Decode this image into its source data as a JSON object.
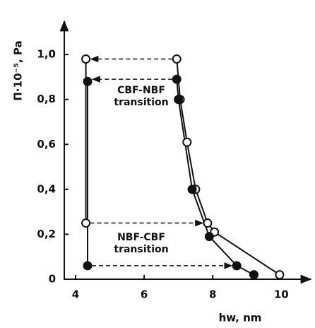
{
  "chart_data": {
    "type": "scatter",
    "xlabel": "hw, nm",
    "ylabel": "Π·10⁻⁵, Pa",
    "xlim": [
      3.67,
      10.9
    ],
    "ylim": [
      0,
      1.12
    ],
    "xticks": [
      4,
      6,
      8,
      10
    ],
    "yticks": [
      0,
      {
        "value": 0.2,
        "label": "0,2"
      },
      {
        "value": 0.4,
        "label": "0,4"
      },
      {
        "value": 0.6,
        "label": "0,6"
      },
      {
        "value": 0.8,
        "label": "0,8"
      },
      {
        "value": 1.0,
        "label": "1,0"
      }
    ],
    "color": "#111111",
    "series": [
      {
        "marker": "open",
        "x": [
          6.95,
          7.05,
          7.25,
          7.5,
          7.85,
          8.05,
          9.95
        ],
        "values": [
          0.98,
          0.8,
          0.61,
          0.4,
          0.25,
          0.21,
          0.02
        ]
      },
      {
        "marker": "filled",
        "x": [
          6.95,
          7.0,
          7.4,
          7.9,
          8.7,
          9.2
        ],
        "values": [
          0.89,
          0.8,
          0.4,
          0.19,
          0.06,
          0.02
        ]
      },
      {
        "marker": "open",
        "x": [
          4.3,
          4.3
        ],
        "values": [
          0.98,
          0.25
        ]
      },
      {
        "marker": "filled",
        "x": [
          4.35,
          4.35
        ],
        "values": [
          0.88,
          0.06
        ]
      }
    ],
    "annotations": [
      "CBF-NBF",
      "transition",
      "NBF-CBF",
      "transition"
    ]
  }
}
